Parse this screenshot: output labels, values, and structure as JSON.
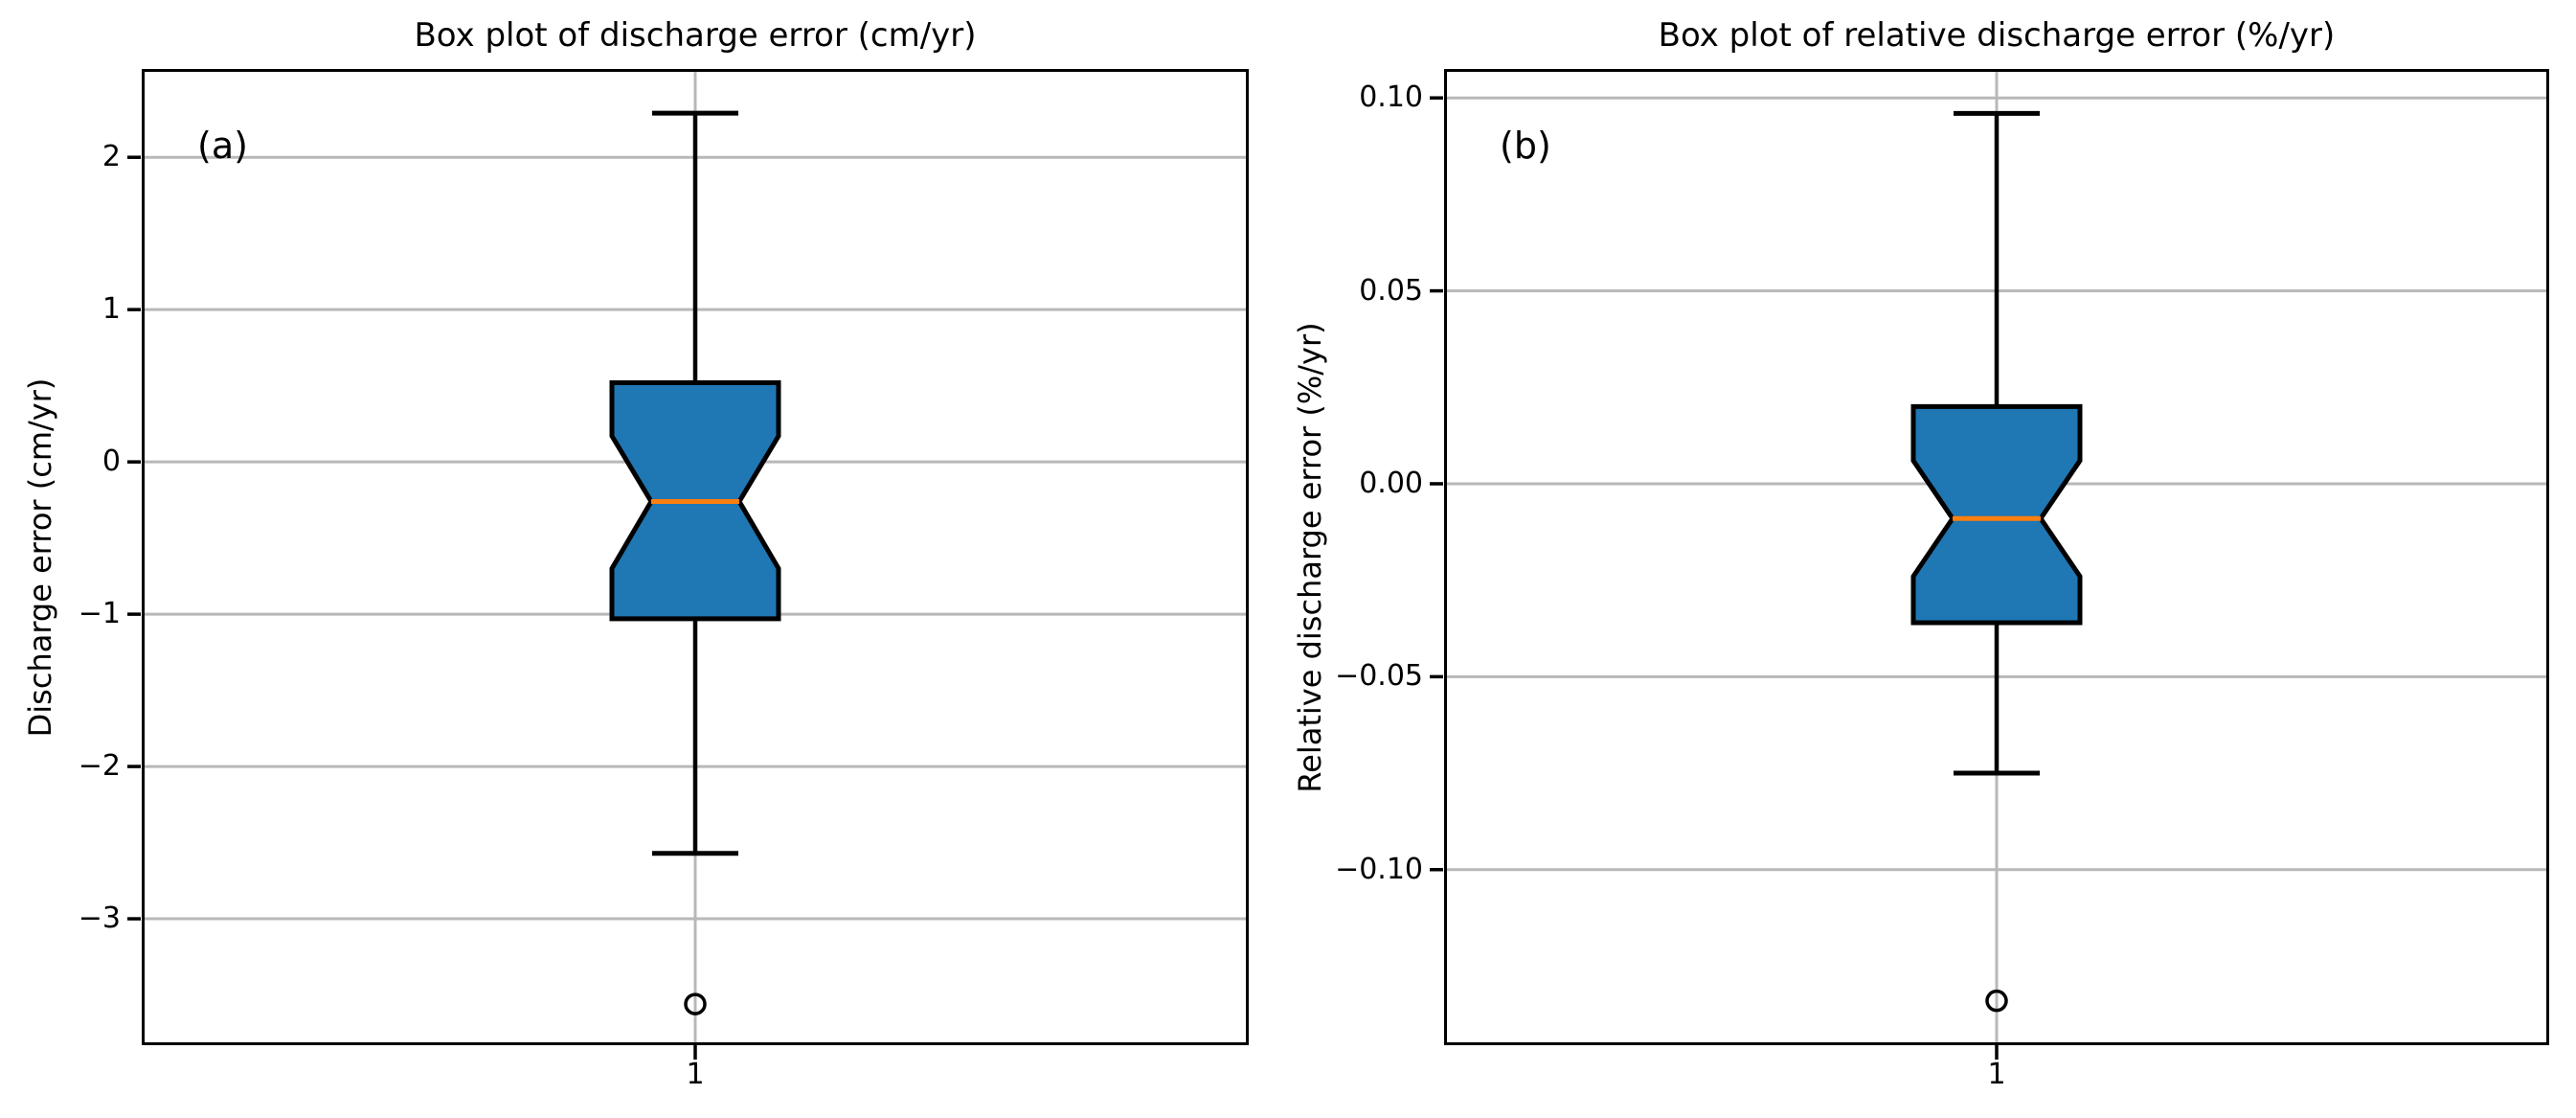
{
  "colors": {
    "box_fill": "#1f77b4",
    "median_line": "#ff7f0e",
    "grid_line": "#b8b8b8",
    "axis_line": "#000000",
    "text": "#000000",
    "background": "#ffffff"
  },
  "chart_data": [
    {
      "type": "boxplot",
      "title": "Box plot of discharge error (cm/yr)",
      "panel_label": "(a)",
      "ylabel": "Discharge error (cm/yr)",
      "xlabel": "",
      "grid": true,
      "notched": true,
      "legend": "none",
      "xtick_labels": [
        "1"
      ],
      "ytick_labels": [
        "2",
        "1",
        "0",
        "−1",
        "−2",
        "−3"
      ],
      "ytick_values": [
        2,
        1,
        0,
        -1,
        -2,
        -3
      ],
      "ylim": [
        -3.83,
        2.58
      ],
      "series": [
        {
          "x_label": "1",
          "whisker_low": -2.57,
          "q1": -1.03,
          "median": -0.26,
          "q3": 0.52,
          "whisker_high": 2.29,
          "notch_low": -0.7,
          "notch_high": 0.17,
          "outliers": [
            -3.56
          ]
        }
      ]
    },
    {
      "type": "boxplot",
      "title": "Box plot of relative discharge error (%/yr)",
      "panel_label": "(b)",
      "ylabel": "Relative discharge error (%/yr)",
      "xlabel": "",
      "grid": true,
      "notched": true,
      "legend": "none",
      "xtick_labels": [
        "1"
      ],
      "ytick_labels": [
        "0.10",
        "0.05",
        "0.00",
        "−0.05",
        "−0.10"
      ],
      "ytick_values": [
        0.1,
        0.05,
        0.0,
        -0.05,
        -0.1
      ],
      "ylim": [
        -0.1455,
        0.1075
      ],
      "series": [
        {
          "x_label": "1",
          "whisker_low": -0.075,
          "q1": -0.036,
          "median": -0.009,
          "q3": 0.02,
          "whisker_high": 0.096,
          "notch_low": -0.024,
          "notch_high": 0.006,
          "outliers": [
            -0.134
          ]
        }
      ]
    }
  ]
}
